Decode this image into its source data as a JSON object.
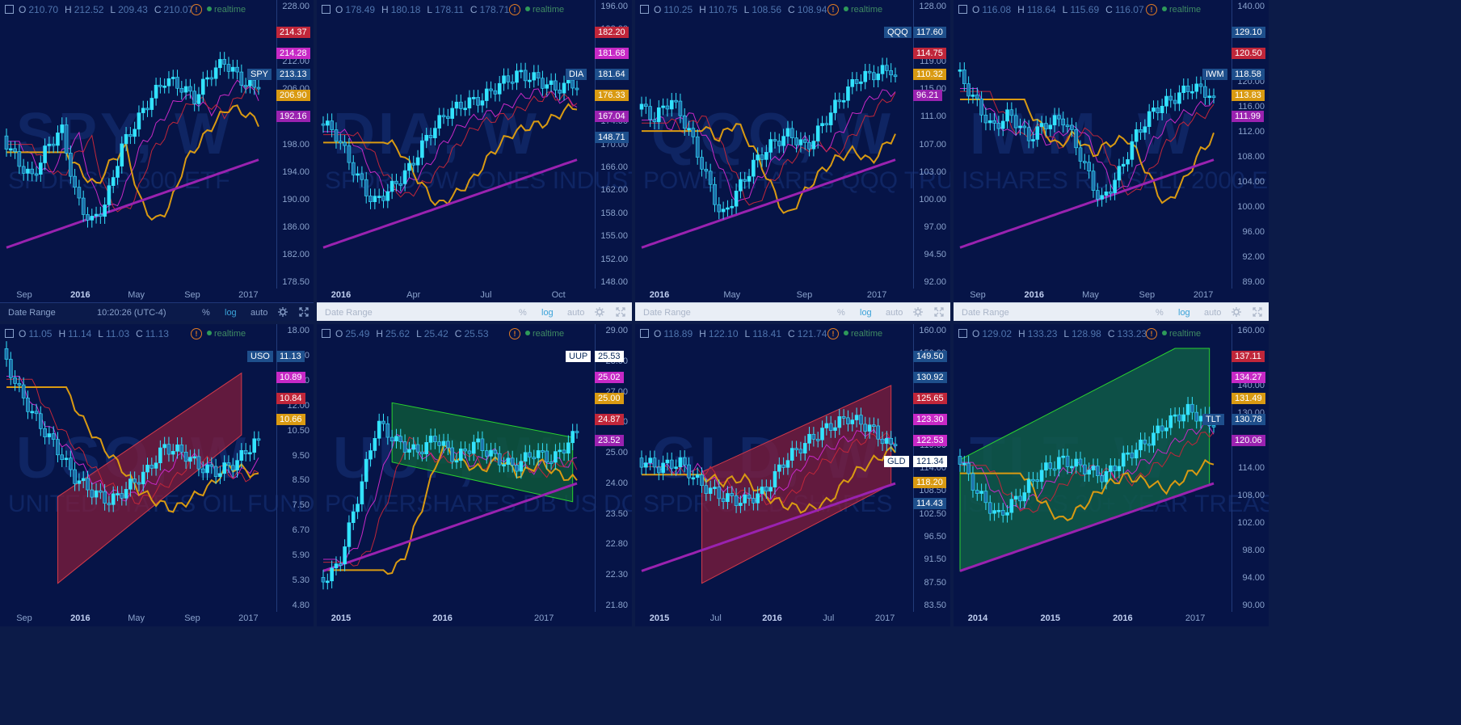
{
  "colors": {
    "bg": "#061447",
    "candle": "#33e3ff",
    "ma_red": "#c0263a",
    "ma_pink": "#c729c6",
    "ma_orange": "#d99a12",
    "ma_purple": "#9a22b0",
    "green_ch": "#2ad12f",
    "red_ch": "#8a1d3a"
  },
  "realtime_label": "realtime",
  "status_bar": {
    "date_range": "Date Range",
    "time": "10:20:26 (UTC-4)",
    "pct": "%",
    "log": "log",
    "auto": "auto",
    "gear_icon": "gear-icon",
    "expand_icon": "expand-icon"
  },
  "panels": [
    {
      "symbol": "SPY",
      "ohlc": [
        [
          "O",
          "210.70"
        ],
        [
          "H",
          "212.52"
        ],
        [
          "L",
          "209.43"
        ],
        [
          "C",
          "210.07"
        ]
      ],
      "watermark": "SPY, W",
      "subtitle": "SPDR S&P 500 ETF",
      "ticks": [
        "228.00",
        "220.00",
        "212.00",
        "206.00",
        "202.00",
        "198.00",
        "194.00",
        "190.00",
        "186.00",
        "182.00",
        "178.50"
      ],
      "labels": [
        {
          "text": "214.37",
          "color": "#c0263a"
        },
        {
          "text": "214.28",
          "color": "#c729c6"
        },
        {
          "text": "213.13",
          "color": "#1e4f8c",
          "sym": true
        },
        {
          "text": "206.90",
          "color": "#d99a12"
        },
        {
          "text": "192.16",
          "color": "#9a22b0"
        }
      ],
      "xlabels": [
        {
          "t": "Sep"
        },
        {
          "t": "2016",
          "b": true
        },
        {
          "t": "May"
        },
        {
          "t": "Sep"
        },
        {
          "t": "2017"
        }
      ],
      "bar": "dark"
    },
    {
      "symbol": "DIA",
      "ohlc": [
        [
          "O",
          "178.49"
        ],
        [
          "H",
          "180.18"
        ],
        [
          "L",
          "178.11"
        ],
        [
          "C",
          "178.71"
        ]
      ],
      "watermark": "DIA, W",
      "subtitle": "SPDR DOW JONES INDUSTRIAL AVERAGE ETF",
      "ticks": [
        "196.00",
        "192.00",
        "188.00",
        "183.00",
        "179.00",
        "174.00",
        "170.00",
        "166.00",
        "162.00",
        "158.00",
        "155.00",
        "152.00",
        "148.00"
      ],
      "labels": [
        {
          "text": "182.20",
          "color": "#c0263a"
        },
        {
          "text": "181.68",
          "color": "#c729c6"
        },
        {
          "text": "181.64",
          "color": "#1e4f8c",
          "sym": true
        },
        {
          "text": "176.33",
          "color": "#d99a12"
        },
        {
          "text": "167.04",
          "color": "#9a22b0"
        },
        {
          "text": "148.71",
          "color": "#1e4f8c"
        }
      ],
      "xlabels": [
        {
          "t": "2016",
          "b": true
        },
        {
          "t": "Apr"
        },
        {
          "t": "Jul"
        },
        {
          "t": "Oct"
        }
      ],
      "bar": "light"
    },
    {
      "symbol": "QQQ",
      "ohlc": [
        [
          "O",
          "110.25"
        ],
        [
          "H",
          "110.75"
        ],
        [
          "L",
          "108.56"
        ],
        [
          "C",
          "108.94"
        ]
      ],
      "watermark": "QQQ, W",
      "subtitle": "POWERSHARES QQQ TRUST",
      "ticks": [
        "128.00",
        "124.00",
        "119.00",
        "115.00",
        "111.00",
        "107.00",
        "103.00",
        "100.00",
        "97.00",
        "94.50",
        "92.00"
      ],
      "labels": [
        {
          "text": "117.60",
          "color": "#1e4f8c",
          "sym": true
        },
        {
          "text": "114.75",
          "color": "#c0263a"
        },
        {
          "text": "110.32",
          "color": "#d99a12"
        },
        {
          "text": "96.21",
          "color": "#9a22b0"
        }
      ],
      "xlabels": [
        {
          "t": "2016",
          "b": true
        },
        {
          "t": "May"
        },
        {
          "t": "Sep"
        },
        {
          "t": "2017"
        }
      ],
      "bar": "light"
    },
    {
      "symbol": "IWM",
      "ohlc": [
        [
          "O",
          "116.08"
        ],
        [
          "H",
          "118.64"
        ],
        [
          "L",
          "115.69"
        ],
        [
          "C",
          "116.07"
        ]
      ],
      "watermark": "IWM, W",
      "subtitle": "ISHARES RUSSELL 2000 ETF",
      "ticks": [
        "140.00",
        "134.00",
        "124.00",
        "120.00",
        "116.00",
        "112.00",
        "108.00",
        "104.00",
        "100.00",
        "96.00",
        "92.00",
        "89.00"
      ],
      "labels": [
        {
          "text": "129.10",
          "color": "#1e4f8c"
        },
        {
          "text": "120.50",
          "color": "#c0263a"
        },
        {
          "text": "118.58",
          "color": "#1e4f8c",
          "sym": true
        },
        {
          "text": "113.83",
          "color": "#d99a12"
        },
        {
          "text": "111.99",
          "color": "#9a22b0"
        }
      ],
      "xlabels": [
        {
          "t": "Sep"
        },
        {
          "t": "2016",
          "b": true
        },
        {
          "t": "May"
        },
        {
          "t": "Sep"
        },
        {
          "t": "2017"
        }
      ],
      "bar": "light"
    },
    {
      "symbol": "USO",
      "ohlc": [
        [
          "O",
          "11.05"
        ],
        [
          "H",
          "11.14"
        ],
        [
          "L",
          "11.03"
        ],
        [
          "C",
          "11.13"
        ]
      ],
      "watermark": "USO, W",
      "subtitle": "UNITED STATES OIL FUND",
      "ticks": [
        "18.00",
        "16.00",
        "14.00",
        "12.00",
        "10.50",
        "9.50",
        "8.50",
        "7.50",
        "6.70",
        "5.90",
        "5.30",
        "4.80"
      ],
      "labels": [
        {
          "text": "11.13",
          "color": "#1e4f8c",
          "sym": true
        },
        {
          "text": "10.89",
          "color": "#c729c6"
        },
        {
          "text": "10.84",
          "color": "#c0263a"
        },
        {
          "text": "10.66",
          "color": "#d99a12"
        }
      ],
      "xlabels": [
        {
          "t": "Sep"
        },
        {
          "t": "2016",
          "b": true
        },
        {
          "t": "May"
        },
        {
          "t": "Sep"
        },
        {
          "t": "2017"
        }
      ],
      "bar": "none"
    },
    {
      "symbol": "UUP",
      "ohlc": [
        [
          "O",
          "25.49"
        ],
        [
          "H",
          "25.62"
        ],
        [
          "L",
          "25.42"
        ],
        [
          "C",
          "25.53"
        ]
      ],
      "watermark": "UUP, W",
      "subtitle": "POWERSHARES DB US DOLLAR INDEX BULLISH",
      "ticks": [
        "29.00",
        "28.00",
        "27.00",
        "26.00",
        "25.00",
        "24.00",
        "23.50",
        "22.80",
        "22.30",
        "21.80"
      ],
      "labels": [
        {
          "text": "25.53",
          "color": "#ffffff",
          "sym": true
        },
        {
          "text": "25.02",
          "color": "#c729c6"
        },
        {
          "text": "25.00",
          "color": "#d99a12"
        },
        {
          "text": "24.87",
          "color": "#c0263a"
        },
        {
          "text": "23.52",
          "color": "#9a22b0"
        }
      ],
      "xlabels": [
        {
          "t": "2015",
          "b": true
        },
        {
          "t": "2016",
          "b": true
        },
        {
          "t": "2017"
        }
      ],
      "bar": "none"
    },
    {
      "symbol": "GLD",
      "ohlc": [
        [
          "O",
          "118.89"
        ],
        [
          "H",
          "122.10"
        ],
        [
          "L",
          "118.41"
        ],
        [
          "C",
          "121.74"
        ]
      ],
      "watermark": "GLD, W",
      "subtitle": "SPDR GOLD SHARES",
      "ticks": [
        "160.00",
        "150.00",
        "140.00",
        "130.00",
        "126.00",
        "119.00",
        "114.00",
        "108.50",
        "102.50",
        "96.50",
        "91.50",
        "87.50",
        "83.50"
      ],
      "labels": [
        {
          "text": "149.50",
          "color": "#1e4f8c"
        },
        {
          "text": "130.92",
          "color": "#1e4f8c"
        },
        {
          "text": "125.65",
          "color": "#c0263a"
        },
        {
          "text": "123.30",
          "color": "#c729c6"
        },
        {
          "text": "122.53",
          "color": "#c729c6"
        },
        {
          "text": "121.34",
          "color": "#ffffff",
          "sym": true
        },
        {
          "text": "118.20",
          "color": "#d99a12"
        },
        {
          "text": "114.43",
          "color": "#1e4f8c"
        }
      ],
      "xlabels": [
        {
          "t": "2015",
          "b": true
        },
        {
          "t": "Jul"
        },
        {
          "t": "2016",
          "b": true
        },
        {
          "t": "Jul"
        },
        {
          "t": "2017"
        }
      ],
      "bar": "none"
    },
    {
      "symbol": "TLT",
      "ohlc": [
        [
          "O",
          "129.02"
        ],
        [
          "H",
          "133.23"
        ],
        [
          "L",
          "128.98"
        ],
        [
          "C",
          "133.23"
        ]
      ],
      "watermark": "TLT, W",
      "subtitle": "ISHARES 20+ YEAR TREASURY BOND ETF",
      "ticks": [
        "160.00",
        "150.00",
        "140.00",
        "130.00",
        "124.00",
        "114.00",
        "108.00",
        "102.00",
        "98.00",
        "94.00",
        "90.00"
      ],
      "labels": [
        {
          "text": "137.11",
          "color": "#c0263a"
        },
        {
          "text": "134.27",
          "color": "#c729c6"
        },
        {
          "text": "131.49",
          "color": "#d99a12"
        },
        {
          "text": "130.78",
          "color": "#1e4f8c",
          "sym": true
        },
        {
          "text": "120.06",
          "color": "#9a22b0"
        }
      ],
      "xlabels": [
        {
          "t": "2014",
          "b": true
        },
        {
          "t": "2015",
          "b": true
        },
        {
          "t": "2016",
          "b": true
        },
        {
          "t": "2017"
        }
      ],
      "bar": "none"
    }
  ]
}
